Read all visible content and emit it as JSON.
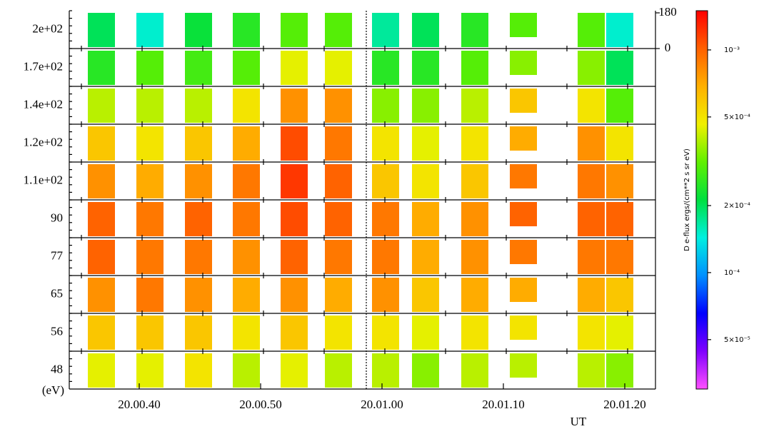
{
  "chart_data": {
    "type": "heatmap",
    "rows": [
      "2e+02",
      "1.7e+02",
      "1.4e+02",
      "1.2e+02",
      "1.1e+02",
      "90",
      "77",
      "65",
      "56",
      "48"
    ],
    "ylabel": "(eV)",
    "columns": [
      null,
      null,
      null,
      null,
      null,
      null,
      null,
      null,
      null,
      null,
      null,
      null
    ],
    "xticks": [
      "20.00.40",
      "20.00.50",
      "20.01.00",
      "20.01.10",
      "20.01.20"
    ],
    "xlabel": "UT",
    "y2ticks": [
      180,
      0
    ],
    "values": [
      [
        0.0002,
        0.00015,
        0.00022,
        0.00025,
        0.0003,
        0.0003,
        0.00017,
        0.0002,
        0.00025,
        0.0003,
        0.0003,
        0.00015
      ],
      [
        0.00025,
        0.0003,
        0.00028,
        0.0003,
        0.00045,
        0.00045,
        0.00025,
        0.00025,
        0.0003,
        0.00035,
        0.00035,
        0.0002
      ],
      [
        0.0004,
        0.0004,
        0.0004,
        0.0005,
        0.0008,
        0.0008,
        0.00035,
        0.00035,
        0.0004,
        0.0006,
        0.0005,
        0.0003
      ],
      [
        0.0006,
        0.0005,
        0.0006,
        0.0007,
        0.0011,
        0.0009,
        0.0005,
        0.00045,
        0.0005,
        0.0007,
        0.0008,
        0.0005
      ],
      [
        0.0008,
        0.0007,
        0.0008,
        0.0009,
        0.0012,
        0.001,
        0.0006,
        0.0005,
        0.0006,
        0.0009,
        0.0009,
        0.0008
      ],
      [
        0.001,
        0.0009,
        0.001,
        0.0009,
        0.0011,
        0.001,
        0.0009,
        0.0007,
        0.0008,
        0.001,
        0.001,
        0.001
      ],
      [
        0.001,
        0.0009,
        0.0009,
        0.0008,
        0.001,
        0.0009,
        0.0009,
        0.0007,
        0.0008,
        0.0009,
        0.0009,
        0.0009
      ],
      [
        0.0008,
        0.0009,
        0.0008,
        0.0007,
        0.0008,
        0.0007,
        0.0008,
        0.0006,
        0.0007,
        0.0007,
        0.0007,
        0.0006
      ],
      [
        0.0006,
        0.0006,
        0.0006,
        0.0005,
        0.0006,
        0.0005,
        0.0005,
        0.00045,
        0.0005,
        0.0005,
        0.0005,
        0.00045
      ],
      [
        0.00045,
        0.00045,
        0.0005,
        0.0004,
        0.00045,
        0.0004,
        0.0004,
        0.00035,
        0.0004,
        0.0004,
        0.0004,
        0.00035
      ]
    ],
    "color_log": true,
    "clim": [
      3e-05,
      0.0015
    ],
    "cticks": [
      {
        "value": 0.001,
        "label": "10⁻³"
      },
      {
        "value": 0.0005,
        "label": "5×10⁻⁴"
      },
      {
        "value": 0.0002,
        "label": "2×10⁻⁴"
      },
      {
        "value": 0.0001,
        "label": "10⁻⁴"
      },
      {
        "value": 5e-05,
        "label": "5×10⁻⁵"
      }
    ],
    "colorbar_label": "D e-flux ergs/(cm**2 s sr eV)",
    "colorscale": [
      "#ff50ff",
      "#8000ff",
      "#0000ff",
      "#0090ff",
      "#00f0e0",
      "#00e040",
      "#60f000",
      "#f0f000",
      "#ffb000",
      "#ff6000",
      "#ff0000"
    ]
  }
}
